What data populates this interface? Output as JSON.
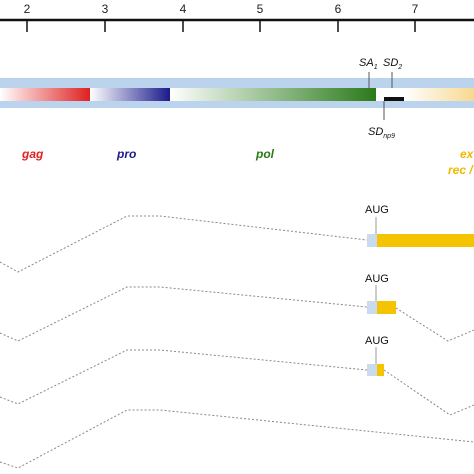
{
  "axis": {
    "ticks": [
      "2",
      "3",
      "4",
      "5",
      "6",
      "7"
    ]
  },
  "sites": {
    "sa1": {
      "main": "SA",
      "sub": "1"
    },
    "sd2": {
      "main": "SD",
      "sub": "2"
    },
    "sdnp9": {
      "main": "SD",
      "sub": "np9"
    }
  },
  "genes": [
    {
      "label": "gag",
      "color": "#e02020"
    },
    {
      "label": "pro",
      "color": "#1a1a8c"
    },
    {
      "label": "pol",
      "color": "#2a7a1a"
    },
    {
      "label": "ex",
      "color": "#f0b800"
    },
    {
      "label": "rec /",
      "color": "#f0b800"
    }
  ],
  "transcripts": [
    {
      "aug_label": "AUG",
      "orf_color": "#f5c400",
      "utr_color": "#c9dcef"
    },
    {
      "aug_label": "AUG",
      "orf_color": "#f5c400",
      "utr_color": "#c9dcef"
    },
    {
      "aug_label": "AUG",
      "orf_color": "#f5c400",
      "utr_color": "#c9dcef"
    }
  ],
  "colors": {
    "genome_band": "#bcd3ee",
    "gag": "#e02020",
    "pro": "#1a1a8c",
    "pol": "#2a7a1a",
    "env": "#f7d890",
    "splice_line": "#888888"
  }
}
